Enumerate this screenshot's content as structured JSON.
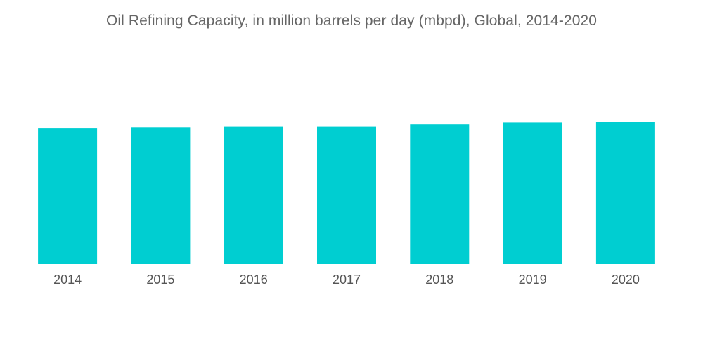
{
  "chart_data": {
    "type": "bar",
    "title": "Oil Refining Capacity, in million barrels per day (mbpd), Global, 2014-2020",
    "xlabel": "",
    "ylabel": "",
    "categories": [
      "2014",
      "2015",
      "2016",
      "2017",
      "2018",
      "2019",
      "2020"
    ],
    "values": [
      97.4,
      97.8,
      98.2,
      98.2,
      99.9,
      101.3,
      101.8
    ],
    "ylim": [
      0,
      103
    ],
    "grid": false,
    "legend": "none",
    "bar_color": "#00CED1"
  }
}
